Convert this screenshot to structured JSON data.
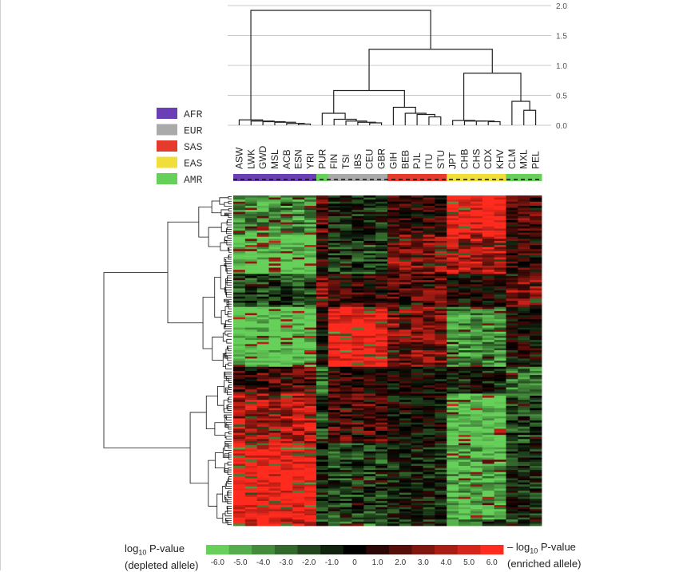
{
  "chart_data": {
    "type": "heatmap",
    "populations": [
      "ASW",
      "LWK",
      "GWD",
      "MSL",
      "ACB",
      "ESN",
      "YRI",
      "PUR",
      "FIN",
      "TSI",
      "IBS",
      "CEU",
      "GBR",
      "GIH",
      "BEB",
      "PJL",
      "ITU",
      "STU",
      "JPT",
      "CHB",
      "CHS",
      "CDX",
      "KHV",
      "CLM",
      "MXL",
      "PEL"
    ],
    "population_group": [
      "AFR",
      "AFR",
      "AFR",
      "AFR",
      "AFR",
      "AFR",
      "AFR",
      "AMR",
      "EUR",
      "EUR",
      "EUR",
      "EUR",
      "EUR",
      "SAS",
      "SAS",
      "SAS",
      "SAS",
      "SAS",
      "EAS",
      "EAS",
      "EAS",
      "EAS",
      "EAS",
      "AMR",
      "AMR",
      "AMR"
    ],
    "superpopulations": [
      {
        "name": "AFR",
        "color": "#6a3fb5"
      },
      {
        "name": "EUR",
        "color": "#aaaaaa"
      },
      {
        "name": "SAS",
        "color": "#e53b2c"
      },
      {
        "name": "EAS",
        "color": "#f0df3a"
      },
      {
        "name": "AMR",
        "color": "#66d05a"
      }
    ],
    "dendrogram_axis": {
      "ticks": [
        "2.0",
        "1.5",
        "1.0",
        "0.5",
        "0.0"
      ],
      "ylim": [
        0,
        2.0
      ]
    },
    "column_clusters": [
      {
        "block": [
          0,
          6
        ],
        "height": 1.92,
        "pattern": "AFR"
      },
      {
        "block": [
          7,
          12
        ],
        "height": 0.58,
        "pattern": "EUR"
      },
      {
        "block": [
          13,
          17
        ],
        "height": 0.32,
        "pattern": "SAS"
      },
      {
        "block": [
          18,
          22
        ],
        "height": 0.87,
        "pattern": "EAS"
      },
      {
        "block": [
          23,
          25
        ],
        "height": 0.4,
        "pattern": "AMR"
      }
    ],
    "row_count": 160,
    "colorbar": {
      "ticks": [
        "-6.0",
        "-5.0",
        "-4.0",
        "-3.0",
        "-2.0",
        "-1.0",
        "0",
        "1.0",
        "2.0",
        "3.0",
        "4.0",
        "5.0",
        "6.0"
      ],
      "range": [
        -6.0,
        6.0
      ],
      "low_color": "#66d05a",
      "mid_color": "#000000",
      "high_color": "#ff2b1e"
    }
  },
  "legend": {
    "left_label_line1": "log",
    "left_label_sub": "10",
    "left_label_tail": " P-value",
    "left_label_line2": "(depleted allele)",
    "right_label_prefix": "– log",
    "right_label_sub": "10",
    "right_label_tail": " P-value",
    "right_label_line2": "(enriched allele)"
  }
}
